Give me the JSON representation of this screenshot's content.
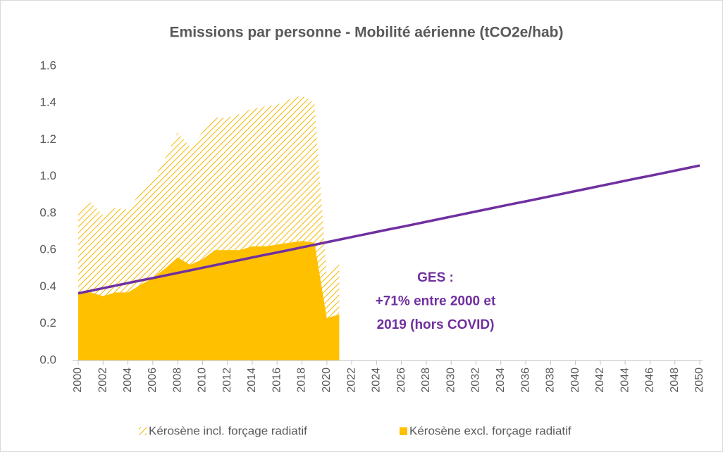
{
  "chart_data": {
    "type": "area_line",
    "title": "Emissions par personne - Mobilité aérienne (tCO2e/hab)",
    "annotation": [
      "GES :",
      "+71% entre 2000 et",
      "2019 (hors COVID)"
    ],
    "annotation_color": "#7030a0",
    "series": [
      {
        "name": "Kérosène incl. forçage radiatif",
        "kind": "hatched-area",
        "color": "#f5b800",
        "x": [
          2000,
          2001,
          2002,
          2003,
          2004,
          2005,
          2006,
          2007,
          2008,
          2009,
          2010,
          2011,
          2012,
          2013,
          2014,
          2015,
          2016,
          2017,
          2018,
          2019,
          2020,
          2021
        ],
        "values": [
          0.81,
          0.86,
          0.79,
          0.83,
          0.82,
          0.91,
          0.98,
          1.1,
          1.24,
          1.16,
          1.24,
          1.32,
          1.32,
          1.34,
          1.37,
          1.38,
          1.39,
          1.42,
          1.44,
          1.4,
          0.46,
          0.55
        ]
      },
      {
        "name": "Kérosène excl. forçage radiatif",
        "kind": "area",
        "color": "#ffc000",
        "x": [
          2000,
          2001,
          2002,
          2003,
          2004,
          2005,
          2006,
          2007,
          2008,
          2009,
          2010,
          2011,
          2012,
          2013,
          2014,
          2015,
          2016,
          2017,
          2018,
          2019,
          2020,
          2021
        ],
        "values": [
          0.37,
          0.37,
          0.35,
          0.37,
          0.37,
          0.41,
          0.45,
          0.5,
          0.56,
          0.52,
          0.55,
          0.6,
          0.6,
          0.6,
          0.62,
          0.62,
          0.63,
          0.64,
          0.65,
          0.64,
          0.23,
          0.25
        ]
      },
      {
        "kind": "line",
        "color": "#7030a0",
        "x": [
          2000,
          2001,
          2002,
          2003,
          2004,
          2005,
          2006,
          2007,
          2008,
          2009,
          2010,
          2011,
          2012,
          2013,
          2014,
          2015,
          2016,
          2017,
          2018,
          2019,
          2020,
          2021,
          2022,
          2023,
          2024,
          2025,
          2026,
          2027,
          2028,
          2029,
          2030,
          2031,
          2032,
          2033,
          2034,
          2035,
          2036,
          2037,
          2038,
          2039,
          2040,
          2041,
          2042,
          2043,
          2044,
          2045,
          2046,
          2047,
          2048,
          2049,
          2050
        ],
        "values": [
          0.365,
          0.379,
          0.393,
          0.407,
          0.421,
          0.435,
          0.448,
          0.462,
          0.476,
          0.49,
          0.504,
          0.518,
          0.532,
          0.546,
          0.56,
          0.574,
          0.587,
          0.601,
          0.615,
          0.629,
          0.643,
          0.657,
          0.671,
          0.685,
          0.699,
          0.713,
          0.726,
          0.74,
          0.754,
          0.768,
          0.782,
          0.796,
          0.81,
          0.824,
          0.838,
          0.852,
          0.865,
          0.879,
          0.893,
          0.907,
          0.921,
          0.935,
          0.949,
          0.963,
          0.977,
          0.991,
          1.004,
          1.018,
          1.032,
          1.046,
          1.06
        ]
      }
    ],
    "xlim": [
      2000,
      2050
    ],
    "xticks": [
      2000,
      2002,
      2004,
      2006,
      2008,
      2010,
      2012,
      2014,
      2016,
      2018,
      2020,
      2022,
      2024,
      2026,
      2028,
      2030,
      2032,
      2034,
      2036,
      2038,
      2040,
      2042,
      2044,
      2046,
      2048,
      2050
    ],
    "ylim": [
      0,
      1.6
    ],
    "yticks": [
      {
        "value": 0,
        "label": "0.0"
      },
      {
        "value": 0.2,
        "label": "0.2"
      },
      {
        "value": 0.4,
        "label": "0.4"
      },
      {
        "value": 0.6,
        "label": "0.6"
      },
      {
        "value": 0.8,
        "label": "0.8"
      },
      {
        "value": 1.0,
        "label": "1.0"
      },
      {
        "value": 1.2,
        "label": "1.2"
      },
      {
        "value": 1.4,
        "label": "1.4"
      },
      {
        "value": 1.6,
        "label": "1.6"
      }
    ],
    "legend": "bottom"
  }
}
